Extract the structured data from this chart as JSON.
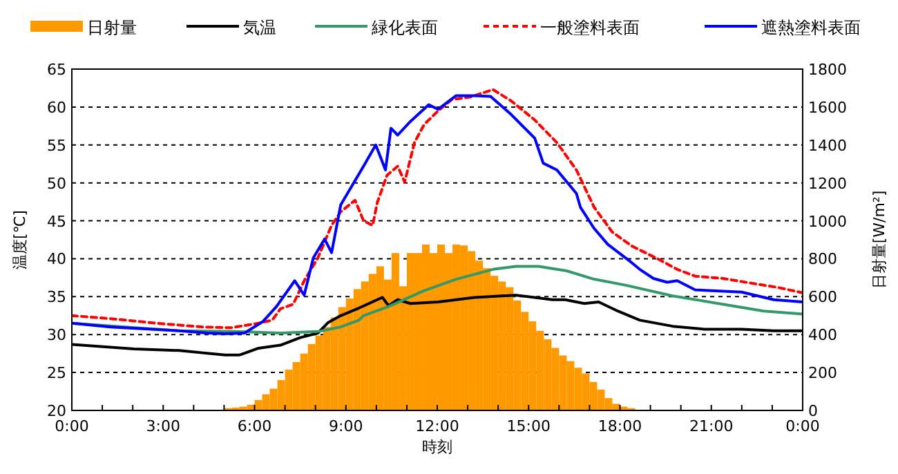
{
  "chart_data": {
    "type": "line",
    "xlabel": "時刻",
    "ylabel": "温度[℃]",
    "y2label": "日射量[W/m²]",
    "xlim": [
      0,
      24
    ],
    "xticks": [
      {
        "value": 0,
        "label": "0:00"
      },
      {
        "value": 1,
        "label": null
      },
      {
        "value": 2,
        "label": null
      },
      {
        "value": 3,
        "label": "3:00"
      },
      {
        "value": 4,
        "label": null
      },
      {
        "value": 5,
        "label": null
      },
      {
        "value": 6,
        "label": "6:00"
      },
      {
        "value": 7,
        "label": null
      },
      {
        "value": 8,
        "label": null
      },
      {
        "value": 9,
        "label": "9:00"
      },
      {
        "value": 10,
        "label": null
      },
      {
        "value": 11,
        "label": null
      },
      {
        "value": 12,
        "label": "12:00"
      },
      {
        "value": 13,
        "label": null
      },
      {
        "value": 14,
        "label": null
      },
      {
        "value": 15,
        "label": "15:00"
      },
      {
        "value": 16,
        "label": null
      },
      {
        "value": 17,
        "label": null
      },
      {
        "value": 18,
        "label": "18:00"
      },
      {
        "value": 19,
        "label": null
      },
      {
        "value": 20,
        "label": null
      },
      {
        "value": 21,
        "label": "21:00"
      },
      {
        "value": 22,
        "label": null
      },
      {
        "value": 23,
        "label": null
      },
      {
        "value": 24,
        "label": "0:00"
      }
    ],
    "ylim": [
      20,
      65
    ],
    "yticks": [
      20,
      25,
      30,
      35,
      40,
      45,
      50,
      55,
      60,
      65
    ],
    "y2lim": [
      0,
      1800
    ],
    "y2ticks": [
      0,
      200,
      400,
      600,
      800,
      1000,
      1200,
      1400,
      1600,
      1800
    ],
    "grid": "y",
    "legend": "top",
    "series": [
      {
        "name": "日射量",
        "type": "bar",
        "axis": "y2",
        "color": "#ff9900",
        "x": [
          5,
          5.25,
          5.5,
          5.75,
          6,
          6.25,
          6.5,
          6.75,
          7,
          7.25,
          7.5,
          7.75,
          8,
          8.25,
          8.5,
          8.75,
          9,
          9.25,
          9.5,
          9.75,
          10,
          10.25,
          10.5,
          10.75,
          11,
          11.25,
          11.5,
          11.75,
          12,
          12.25,
          12.5,
          12.75,
          13,
          13.25,
          13.5,
          13.75,
          14,
          14.25,
          14.5,
          14.75,
          15,
          15.25,
          15.5,
          15.75,
          16,
          16.25,
          16.5,
          16.75,
          17,
          17.25,
          17.5,
          17.75,
          18,
          18.25
        ],
        "values": [
          12,
          15,
          20,
          30,
          55,
          85,
          115,
          160,
          215,
          255,
          300,
          350,
          395,
          440,
          490,
          545,
          590,
          640,
          680,
          720,
          760,
          690,
          830,
          655,
          830,
          830,
          875,
          830,
          875,
          830,
          875,
          870,
          840,
          790,
          750,
          710,
          680,
          650,
          580,
          520,
          470,
          420,
          375,
          330,
          290,
          260,
          225,
          195,
          150,
          110,
          65,
          35,
          20,
          12
        ]
      },
      {
        "name": "気温",
        "color": "#000000",
        "line_style": "solid",
        "x": [
          0,
          2.05,
          3.53,
          5.03,
          5.5,
          6.13,
          6.85,
          7.5,
          8.08,
          8.42,
          8.83,
          9.43,
          10.03,
          10.2,
          10.4,
          10.7,
          11.12,
          12.03,
          13.22,
          14.12,
          14.58,
          15.2,
          15.78,
          16.2,
          16.83,
          17.3,
          17.93,
          18.65,
          19.73,
          20.78,
          22,
          23.05,
          24
        ],
        "values": [
          28.7,
          28.1,
          27.9,
          27.3,
          27.3,
          28.2,
          28.6,
          29.6,
          30.2,
          31.6,
          32.5,
          33.5,
          34.6,
          34.9,
          33.8,
          34.6,
          34.1,
          34.3,
          34.9,
          35.1,
          35.2,
          34.9,
          34.6,
          34.6,
          34.1,
          34.3,
          33.1,
          31.9,
          31.1,
          30.7,
          30.7,
          30.5,
          30.5
        ]
      },
      {
        "name": "緑化表面",
        "color": "#339966",
        "line_style": "solid",
        "x": [
          0,
          3.53,
          5.38,
          6.85,
          8.08,
          8.83,
          9.43,
          9.58,
          10.4,
          11.57,
          12.62,
          13.83,
          14.58,
          15.33,
          16.25,
          17.15,
          18.2,
          19.73,
          21.23,
          22.73,
          24
        ],
        "values": [
          31.5,
          30.5,
          30.4,
          30.2,
          30.4,
          31.0,
          31.9,
          32.5,
          33.7,
          35.8,
          37.3,
          38.6,
          39.0,
          39.0,
          38.4,
          37.3,
          36.5,
          35.1,
          34.1,
          33.1,
          32.7
        ]
      },
      {
        "name": "一般塗料表面",
        "color": "#ff0000",
        "line_style": "dashed",
        "x": [
          0,
          1.27,
          2.77,
          4.3,
          5.22,
          6.13,
          6.58,
          6.85,
          7.27,
          7.63,
          8.08,
          8.53,
          8.83,
          9.3,
          9.58,
          9.88,
          10.03,
          10.35,
          10.7,
          10.93,
          11.25,
          11.57,
          12.03,
          12.48,
          13.07,
          13.83,
          14.43,
          15.2,
          15.93,
          16.57,
          17.15,
          17.75,
          18.38,
          19.28,
          19.88,
          20.47,
          21.38,
          22.28,
          23.2,
          24
        ],
        "values": [
          32.5,
          32.1,
          31.5,
          31.0,
          30.9,
          31.5,
          31.9,
          33.4,
          34.0,
          37.1,
          40.1,
          44.4,
          46.2,
          47.7,
          45.0,
          44.4,
          47.4,
          51.0,
          52.2,
          50.1,
          55.3,
          57.7,
          59.5,
          61.0,
          61.3,
          62.3,
          60.8,
          58.3,
          55.3,
          51.7,
          46.8,
          43.5,
          41.7,
          39.9,
          38.6,
          37.7,
          37.4,
          36.8,
          36.2,
          35.5
        ]
      },
      {
        "name": "遮熱塗料表面",
        "color": "#0000ff",
        "line_style": "solid",
        "x": [
          0,
          1.27,
          3.53,
          4.45,
          5.03,
          5.67,
          6.27,
          6.72,
          7.32,
          7.63,
          7.93,
          8.3,
          8.53,
          8.83,
          9.58,
          9.98,
          10.3,
          10.48,
          10.7,
          11.12,
          11.72,
          12.03,
          12.62,
          13.22,
          13.75,
          14.43,
          15.2,
          15.48,
          15.93,
          16.57,
          16.7,
          17.15,
          17.6,
          18.38,
          18.65,
          19.1,
          19.55,
          19.88,
          20.47,
          22,
          23.05,
          24
        ],
        "values": [
          31.5,
          31.0,
          30.5,
          30.2,
          30.1,
          30.2,
          31.7,
          33.7,
          37.1,
          35.2,
          40.1,
          42.6,
          40.8,
          47.1,
          52.2,
          55.0,
          51.7,
          57.2,
          56.3,
          58.1,
          60.3,
          59.7,
          61.5,
          61.5,
          61.4,
          59.0,
          55.9,
          52.6,
          51.7,
          48.6,
          46.8,
          44.0,
          41.9,
          39.5,
          38.6,
          37.4,
          36.9,
          37.1,
          35.9,
          35.6,
          34.6,
          34.3
        ]
      }
    ]
  }
}
